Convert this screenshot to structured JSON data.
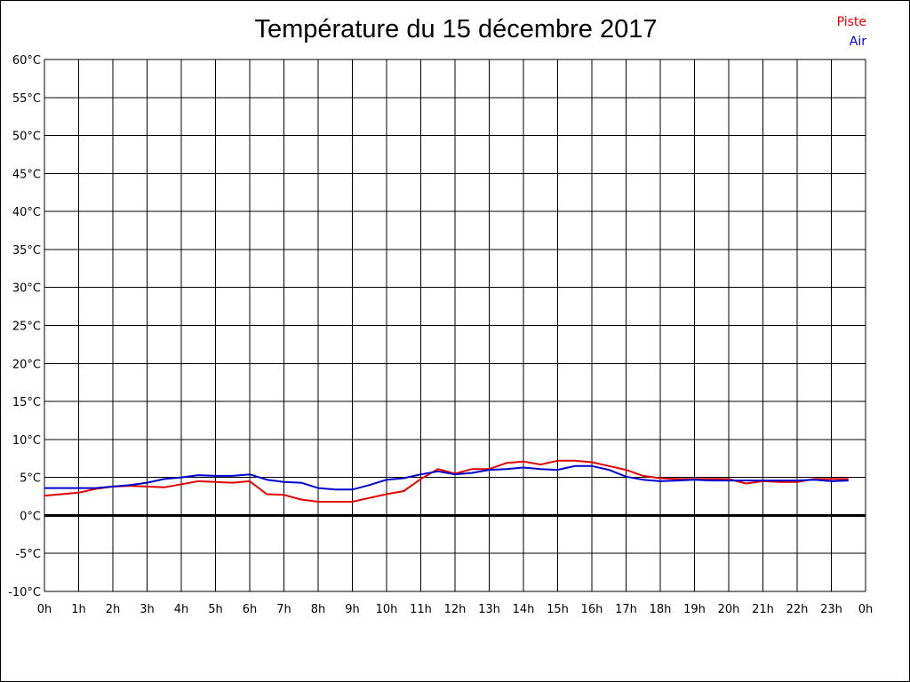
{
  "chart_data": {
    "type": "line",
    "title": "Température du 15 décembre 2017",
    "xlabel": "",
    "ylabel": "",
    "x_ticks": [
      "0h",
      "1h",
      "2h",
      "3h",
      "4h",
      "5h",
      "6h",
      "7h",
      "8h",
      "9h",
      "10h",
      "11h",
      "12h",
      "13h",
      "14h",
      "15h",
      "16h",
      "17h",
      "18h",
      "19h",
      "20h",
      "21h",
      "22h",
      "23h",
      "0h"
    ],
    "y_ticks": [
      "60°C",
      "55°C",
      "50°C",
      "45°C",
      "40°C",
      "35°C",
      "30°C",
      "25°C",
      "20°C",
      "15°C",
      "10°C",
      "5°C",
      "0°C",
      "-5°C",
      "-10°C"
    ],
    "xlim": [
      0,
      24
    ],
    "ylim": [
      -10,
      60
    ],
    "grid": true,
    "zero_line": true,
    "legend_position": "top-right",
    "series": [
      {
        "name": "Piste",
        "color": "#e00000",
        "x": [
          0,
          0.5,
          1,
          1.5,
          2,
          2.5,
          3,
          3.5,
          4,
          4.5,
          5,
          5.5,
          6,
          6.5,
          7,
          7.5,
          8,
          8.5,
          9,
          9.5,
          10,
          10.5,
          11,
          11.5,
          12,
          12.5,
          13,
          13.5,
          14,
          14.5,
          15,
          15.5,
          16,
          16.5,
          17,
          17.5,
          18,
          18.5,
          19,
          19.5,
          20,
          20.5,
          21,
          21.5,
          22,
          22.5,
          23,
          23.5
        ],
        "values": [
          2.6,
          2.8,
          3.0,
          3.5,
          3.8,
          3.9,
          3.8,
          3.7,
          4.1,
          4.5,
          4.4,
          4.3,
          4.5,
          2.8,
          2.7,
          2.1,
          1.8,
          1.8,
          1.8,
          2.3,
          2.8,
          3.2,
          4.8,
          6.1,
          5.5,
          6.1,
          6.1,
          6.9,
          7.1,
          6.7,
          7.2,
          7.2,
          7.0,
          6.5,
          6.0,
          5.2,
          4.9,
          4.8,
          4.8,
          4.8,
          4.8,
          4.2,
          4.5,
          4.4,
          4.4,
          4.8,
          4.8,
          4.8
        ]
      },
      {
        "name": "Air",
        "color": "#0000cc",
        "x": [
          0,
          0.5,
          1,
          1.5,
          2,
          2.5,
          3,
          3.5,
          4,
          4.5,
          5,
          5.5,
          6,
          6.5,
          7,
          7.5,
          8,
          8.5,
          9,
          9.5,
          10,
          10.5,
          11,
          11.5,
          12,
          12.5,
          13,
          13.5,
          14,
          14.5,
          15,
          15.5,
          16,
          16.5,
          17,
          17.5,
          18,
          18.5,
          19,
          19.5,
          20,
          20.5,
          21,
          21.5,
          22,
          22.5,
          23,
          23.5
        ],
        "values": [
          3.6,
          3.6,
          3.6,
          3.6,
          3.8,
          4.0,
          4.3,
          4.8,
          5.0,
          5.3,
          5.2,
          5.2,
          5.4,
          4.7,
          4.4,
          4.3,
          3.6,
          3.4,
          3.4,
          4.0,
          4.7,
          4.9,
          5.4,
          5.8,
          5.4,
          5.6,
          6.0,
          6.1,
          6.3,
          6.1,
          6.0,
          6.5,
          6.5,
          6.0,
          5.1,
          4.7,
          4.5,
          4.6,
          4.7,
          4.6,
          4.6,
          4.6,
          4.6,
          4.6,
          4.6,
          4.7,
          4.5,
          4.6
        ]
      }
    ]
  }
}
